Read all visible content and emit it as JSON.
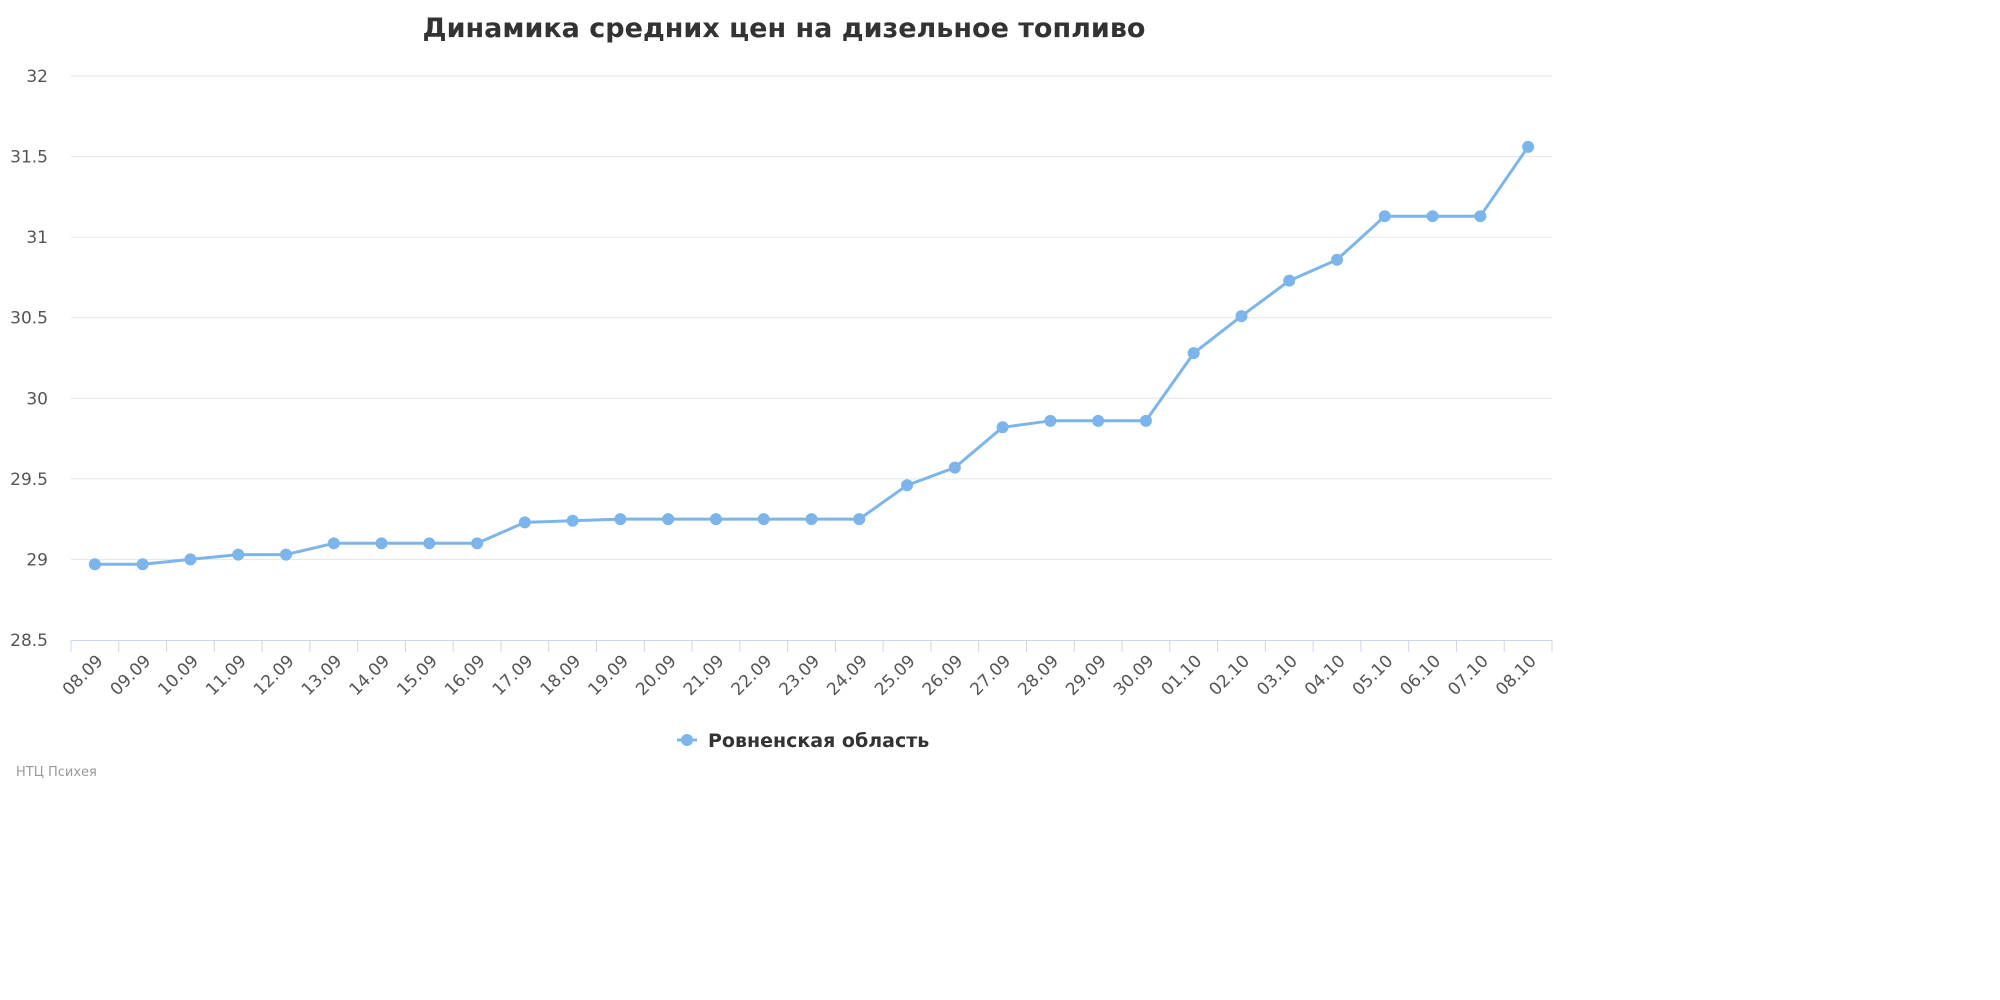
{
  "chart_data": {
    "type": "line",
    "title": "Динамика средних цен на дизельное топливо",
    "categories": [
      "08.09",
      "09.09",
      "10.09",
      "11.09",
      "12.09",
      "13.09",
      "14.09",
      "15.09",
      "16.09",
      "17.09",
      "18.09",
      "19.09",
      "20.09",
      "21.09",
      "22.09",
      "23.09",
      "24.09",
      "25.09",
      "26.09",
      "27.09",
      "28.09",
      "29.09",
      "30.09",
      "01.10",
      "02.10",
      "03.10",
      "04.10",
      "05.10",
      "06.10",
      "07.10",
      "08.10"
    ],
    "series": [
      {
        "name": "Ровненская область",
        "color": "#7cb5ec",
        "values": [
          28.97,
          28.97,
          29.0,
          29.03,
          29.03,
          29.1,
          29.1,
          29.1,
          29.1,
          29.23,
          29.24,
          29.25,
          29.25,
          29.25,
          29.25,
          29.25,
          29.25,
          29.46,
          29.57,
          29.82,
          29.86,
          29.86,
          29.86,
          30.28,
          30.51,
          30.73,
          30.86,
          31.13,
          31.13,
          31.13,
          31.56
        ]
      }
    ],
    "yticks": [
      "28.5",
      "29",
      "29.5",
      "30",
      "30.5",
      "31",
      "31.5",
      "32"
    ],
    "ylim": [
      28.5,
      32
    ],
    "grid": true,
    "legend_position": "bottom-center",
    "xlabel": "",
    "ylabel": ""
  },
  "credit": "НТЦ Психея"
}
